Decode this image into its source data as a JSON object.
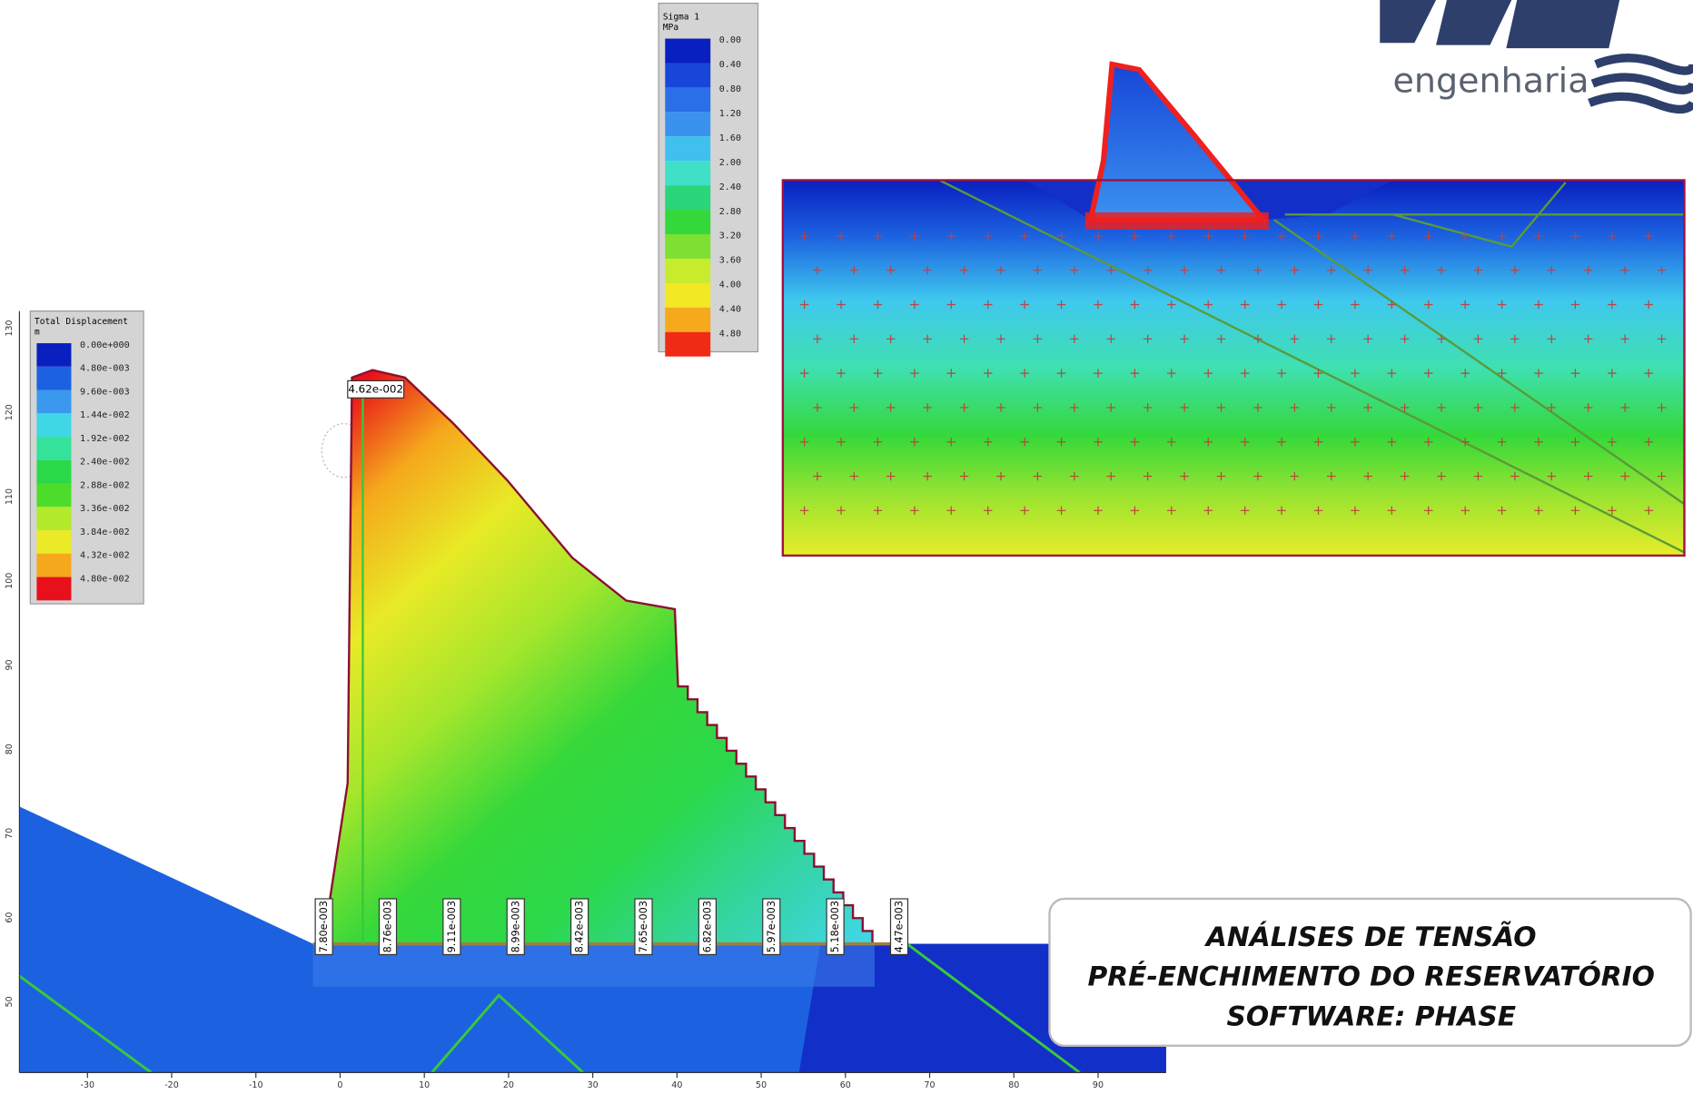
{
  "logo": {
    "text": "engenharia"
  },
  "stress_plot": {
    "legend": {
      "title": "Sigma 1",
      "unit": "MPa",
      "labels": [
        "0.00",
        "0.40",
        "0.80",
        "1.20",
        "1.60",
        "2.00",
        "2.40",
        "2.80",
        "3.20",
        "3.60",
        "4.00",
        "4.40",
        "4.80"
      ],
      "colors": [
        "#0a1fbf",
        "#1846d9",
        "#2a6ee8",
        "#3a92ef",
        "#3fc0ee",
        "#3fe0c8",
        "#2ad67a",
        "#35d83a",
        "#7ee032",
        "#c8ec2c",
        "#f2e824",
        "#f6a91c",
        "#f02a14"
      ]
    }
  },
  "displacement_plot": {
    "legend": {
      "title": "Total Displacement",
      "unit": "m",
      "labels": [
        "0.00e+000",
        "4.80e-003",
        "9.60e-003",
        "1.44e-002",
        "1.92e-002",
        "2.40e-002",
        "2.88e-002",
        "3.36e-002",
        "3.84e-002",
        "4.32e-002",
        "4.80e-002"
      ],
      "colors": [
        "#0a1fbf",
        "#1c62e0",
        "#3a98ee",
        "#3fd6e6",
        "#35e29a",
        "#2bd84a",
        "#4cdc2a",
        "#b4ea2c",
        "#eaea26",
        "#f5a81c",
        "#e8101a"
      ]
    },
    "max_label": "4.62e-002",
    "base_labels": [
      "7.80e-003",
      "8.76e-003",
      "9.11e-003",
      "8.99e-003",
      "8.42e-003",
      "7.65e-003",
      "6.82e-003",
      "5.97e-003",
      "5.18e-003",
      "4.47e-003"
    ],
    "x_axis_labels": [
      "-30",
      "-20",
      "-10",
      "0",
      "10",
      "20",
      "30",
      "40",
      "50",
      "60",
      "70",
      "80",
      "90"
    ],
    "y_axis_labels": [
      "130",
      "120",
      "110",
      "100",
      "90",
      "80",
      "70",
      "60",
      "50"
    ]
  },
  "caption": {
    "lines": [
      "ANÁLISES DE TENSÃO",
      "PRÉ-ENCHIMENTO DO RESERVATÓRIO",
      "SOFTWARE: PHASE"
    ]
  }
}
